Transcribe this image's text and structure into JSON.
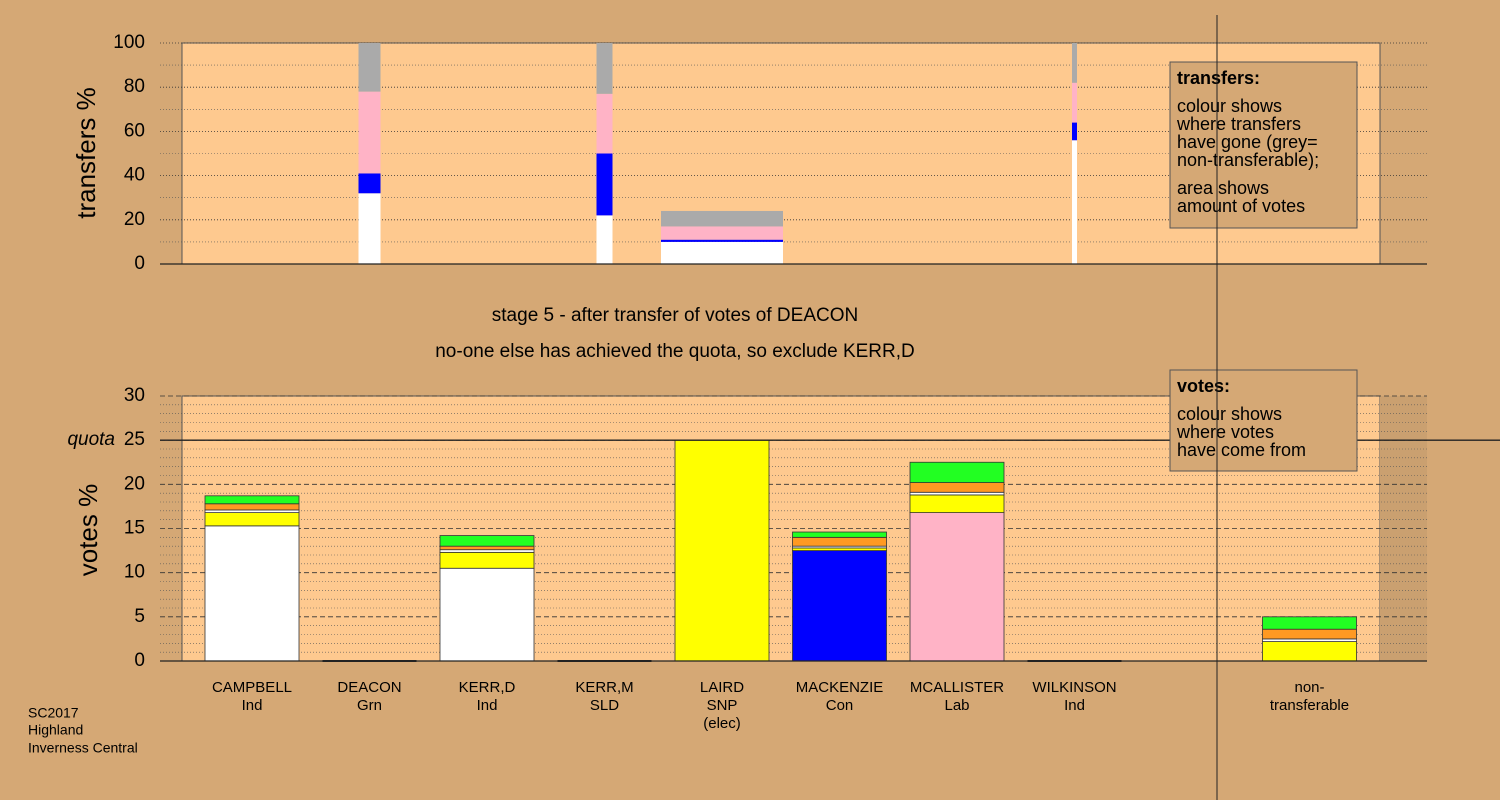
{
  "chart_data": [
    {
      "type": "bar",
      "stacked": true,
      "ylabel": "transfers %",
      "categories": [
        null,
        null,
        null,
        null,
        null,
        null,
        null,
        null,
        null
      ],
      "transfer_amounts": [
        null,
        22,
        null,
        16,
        122,
        null,
        null,
        5,
        null
      ],
      "series": [
        {
          "color": "#ffffff",
          "values": [
            null,
            32,
            null,
            22,
            10,
            null,
            null,
            56,
            null
          ]
        },
        {
          "color": "#0000ff",
          "values": [
            null,
            9,
            null,
            28,
            1,
            null,
            null,
            8,
            null
          ]
        },
        {
          "color": "#ffb3c6",
          "values": [
            null,
            37,
            null,
            27,
            6,
            null,
            null,
            18,
            null
          ]
        },
        {
          "color": "#aaaaaa",
          "values": [
            null,
            22,
            null,
            23,
            7,
            null,
            null,
            18,
            null
          ]
        }
      ],
      "ylim": [
        0,
        100
      ],
      "yticks": [
        0,
        20,
        40,
        60,
        80,
        100
      ],
      "grid": true,
      "legend": {
        "title": "transfers:",
        "lines": [
          "colour shows",
          "where transfers",
          "have gone (grey=",
          "non-transferable);"
        ],
        "lines2": [
          "area shows",
          "amount of votes"
        ]
      }
    },
    {
      "type": "bar",
      "stacked": true,
      "ylabel": "votes %",
      "categories": [
        [
          "CAMPBELL",
          "Ind"
        ],
        [
          "DEACON",
          "Grn"
        ],
        [
          "KERR,D",
          "Ind"
        ],
        [
          "KERR,M",
          "SLD"
        ],
        [
          "LAIRD",
          "SNP",
          "(elec)"
        ],
        [
          "MACKENZIE",
          "Con"
        ],
        [
          "MCALLISTER",
          "Lab"
        ],
        [
          "WILKINSON",
          "Ind"
        ],
        [
          "non-",
          "transferable"
        ]
      ],
      "series": [
        {
          "colors": [
            "#ffffff",
            "#22ff22",
            "#ffffff",
            "#ff9922",
            "#ffff00",
            "#0000ff",
            "#ffb3c6",
            "#ffffff",
            "#aaaaaa"
          ],
          "values": [
            15.3,
            0,
            10.5,
            0,
            25,
            12.5,
            16.8,
            0,
            0
          ]
        },
        {
          "color": "#ffff00",
          "values": [
            1.5,
            0,
            1.8,
            0,
            0,
            0.3,
            2.0,
            0,
            2.2
          ]
        },
        {
          "color": "#ffffff",
          "values": [
            0.3,
            0,
            0.3,
            0,
            0,
            0.2,
            0.3,
            0,
            0.3
          ]
        },
        {
          "color": "#ff9922",
          "values": [
            0.7,
            0,
            0.4,
            0,
            0,
            1.0,
            1.1,
            0,
            1.1
          ]
        },
        {
          "color": "#22ff22",
          "values": [
            0.9,
            0,
            1.2,
            0,
            0,
            0.6,
            2.3,
            0,
            1.4
          ]
        }
      ],
      "ylim": [
        0,
        30
      ],
      "yticks": [
        0,
        5,
        10,
        15,
        20,
        25,
        30
      ],
      "grid": true,
      "quota": {
        "label": "quota",
        "value": 25
      },
      "legend": {
        "title": "votes:",
        "lines": [
          "colour shows",
          "where votes",
          "have come from"
        ]
      }
    }
  ],
  "notes": [
    "stage 5 - after transfer of votes of DEACON",
    "no-one else has achieved the quota, so exclude KERR,D"
  ],
  "footer": [
    "SC2017",
    "Highland",
    "Inverness Central"
  ]
}
